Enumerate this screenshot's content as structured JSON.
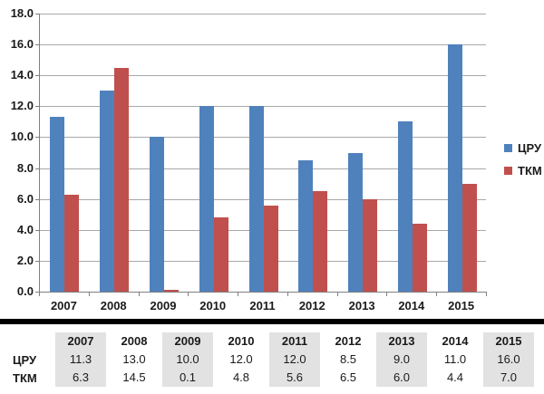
{
  "chart_data": {
    "type": "bar",
    "title": "",
    "xlabel": "",
    "ylabel": "",
    "categories": [
      "2007",
      "2008",
      "2009",
      "2010",
      "2011",
      "2012",
      "2013",
      "2014",
      "2015"
    ],
    "series": [
      {
        "name": "ЦРУ",
        "color": "#4F81BD",
        "values": [
          11.3,
          13.0,
          10.0,
          12.0,
          12.0,
          8.5,
          9.0,
          11.0,
          16.0
        ]
      },
      {
        "name": "ТКМ",
        "color": "#C0504D",
        "values": [
          6.3,
          14.5,
          0.1,
          4.8,
          5.6,
          6.5,
          6.0,
          4.4,
          7.0
        ]
      }
    ],
    "ylim": [
      0,
      18
    ],
    "ytick_step": 2,
    "ytick_labels": [
      "0.0",
      "2.0",
      "4.0",
      "6.0",
      "8.0",
      "10.0",
      "12.0",
      "14.0",
      "16.0",
      "18.0"
    ],
    "grid": true,
    "legend_position": "right"
  },
  "legend": {
    "items": [
      {
        "label": "ЦРУ",
        "color": "#4F81BD"
      },
      {
        "label": "ТКМ",
        "color": "#C0504D"
      }
    ]
  },
  "table": {
    "header": [
      "2007",
      "2008",
      "2009",
      "2010",
      "2011",
      "2012",
      "2013",
      "2014",
      "2015"
    ],
    "rows": [
      {
        "label": "ЦРУ",
        "values": [
          "11.3",
          "13.0",
          "10.0",
          "12.0",
          "12.0",
          "8.5",
          "9.0",
          "11.0",
          "16.0"
        ]
      },
      {
        "label": "ТКМ",
        "values": [
          "6.3",
          "14.5",
          "0.1",
          "4.8",
          "5.6",
          "6.5",
          "6.0",
          "4.4",
          "7.0"
        ]
      }
    ],
    "shaded_columns": [
      0,
      2,
      4,
      6,
      8
    ],
    "shade_color": "#E2E2E2"
  },
  "colors": {
    "axis": "#808080",
    "gridline": "#A8A8A8",
    "divider": "#000000",
    "text": "#1A1A1A",
    "background": "#FFFFFF"
  }
}
